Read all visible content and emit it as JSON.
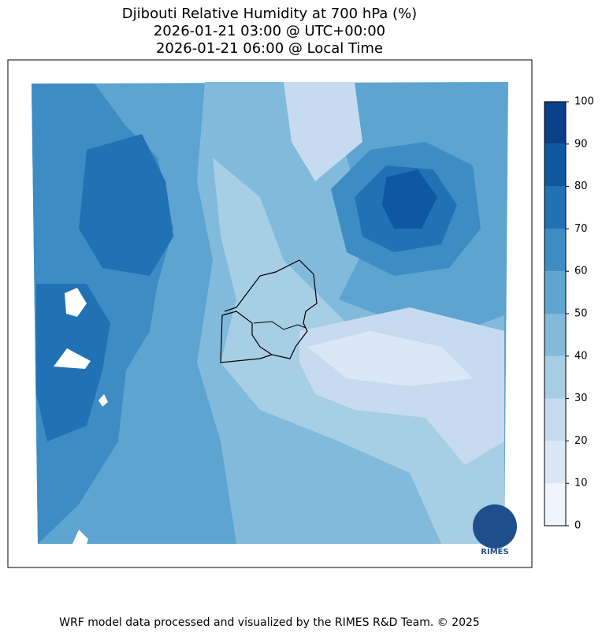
{
  "title": [
    "Djibouti Relative Humidity at 700 hPa (%)",
    "2026-01-21 03:00 @ UTC+00:00",
    "2026-01-21 06:00 @ Local Time"
  ],
  "colorbar": {
    "ticks": [
      0,
      10,
      20,
      30,
      40,
      50,
      60,
      70,
      80,
      90,
      100
    ],
    "colors": [
      "#eef5fc",
      "#dae8f6",
      "#c6dbef",
      "#a6cee4",
      "#82badb",
      "#5da4d0",
      "#3d8dc4",
      "#2171b5",
      "#0e58a2",
      "#08408a"
    ]
  },
  "logo": "RIMES",
  "footer": "WRF model data processed and visualized by the RIMES R&D Team. © 2025"
}
